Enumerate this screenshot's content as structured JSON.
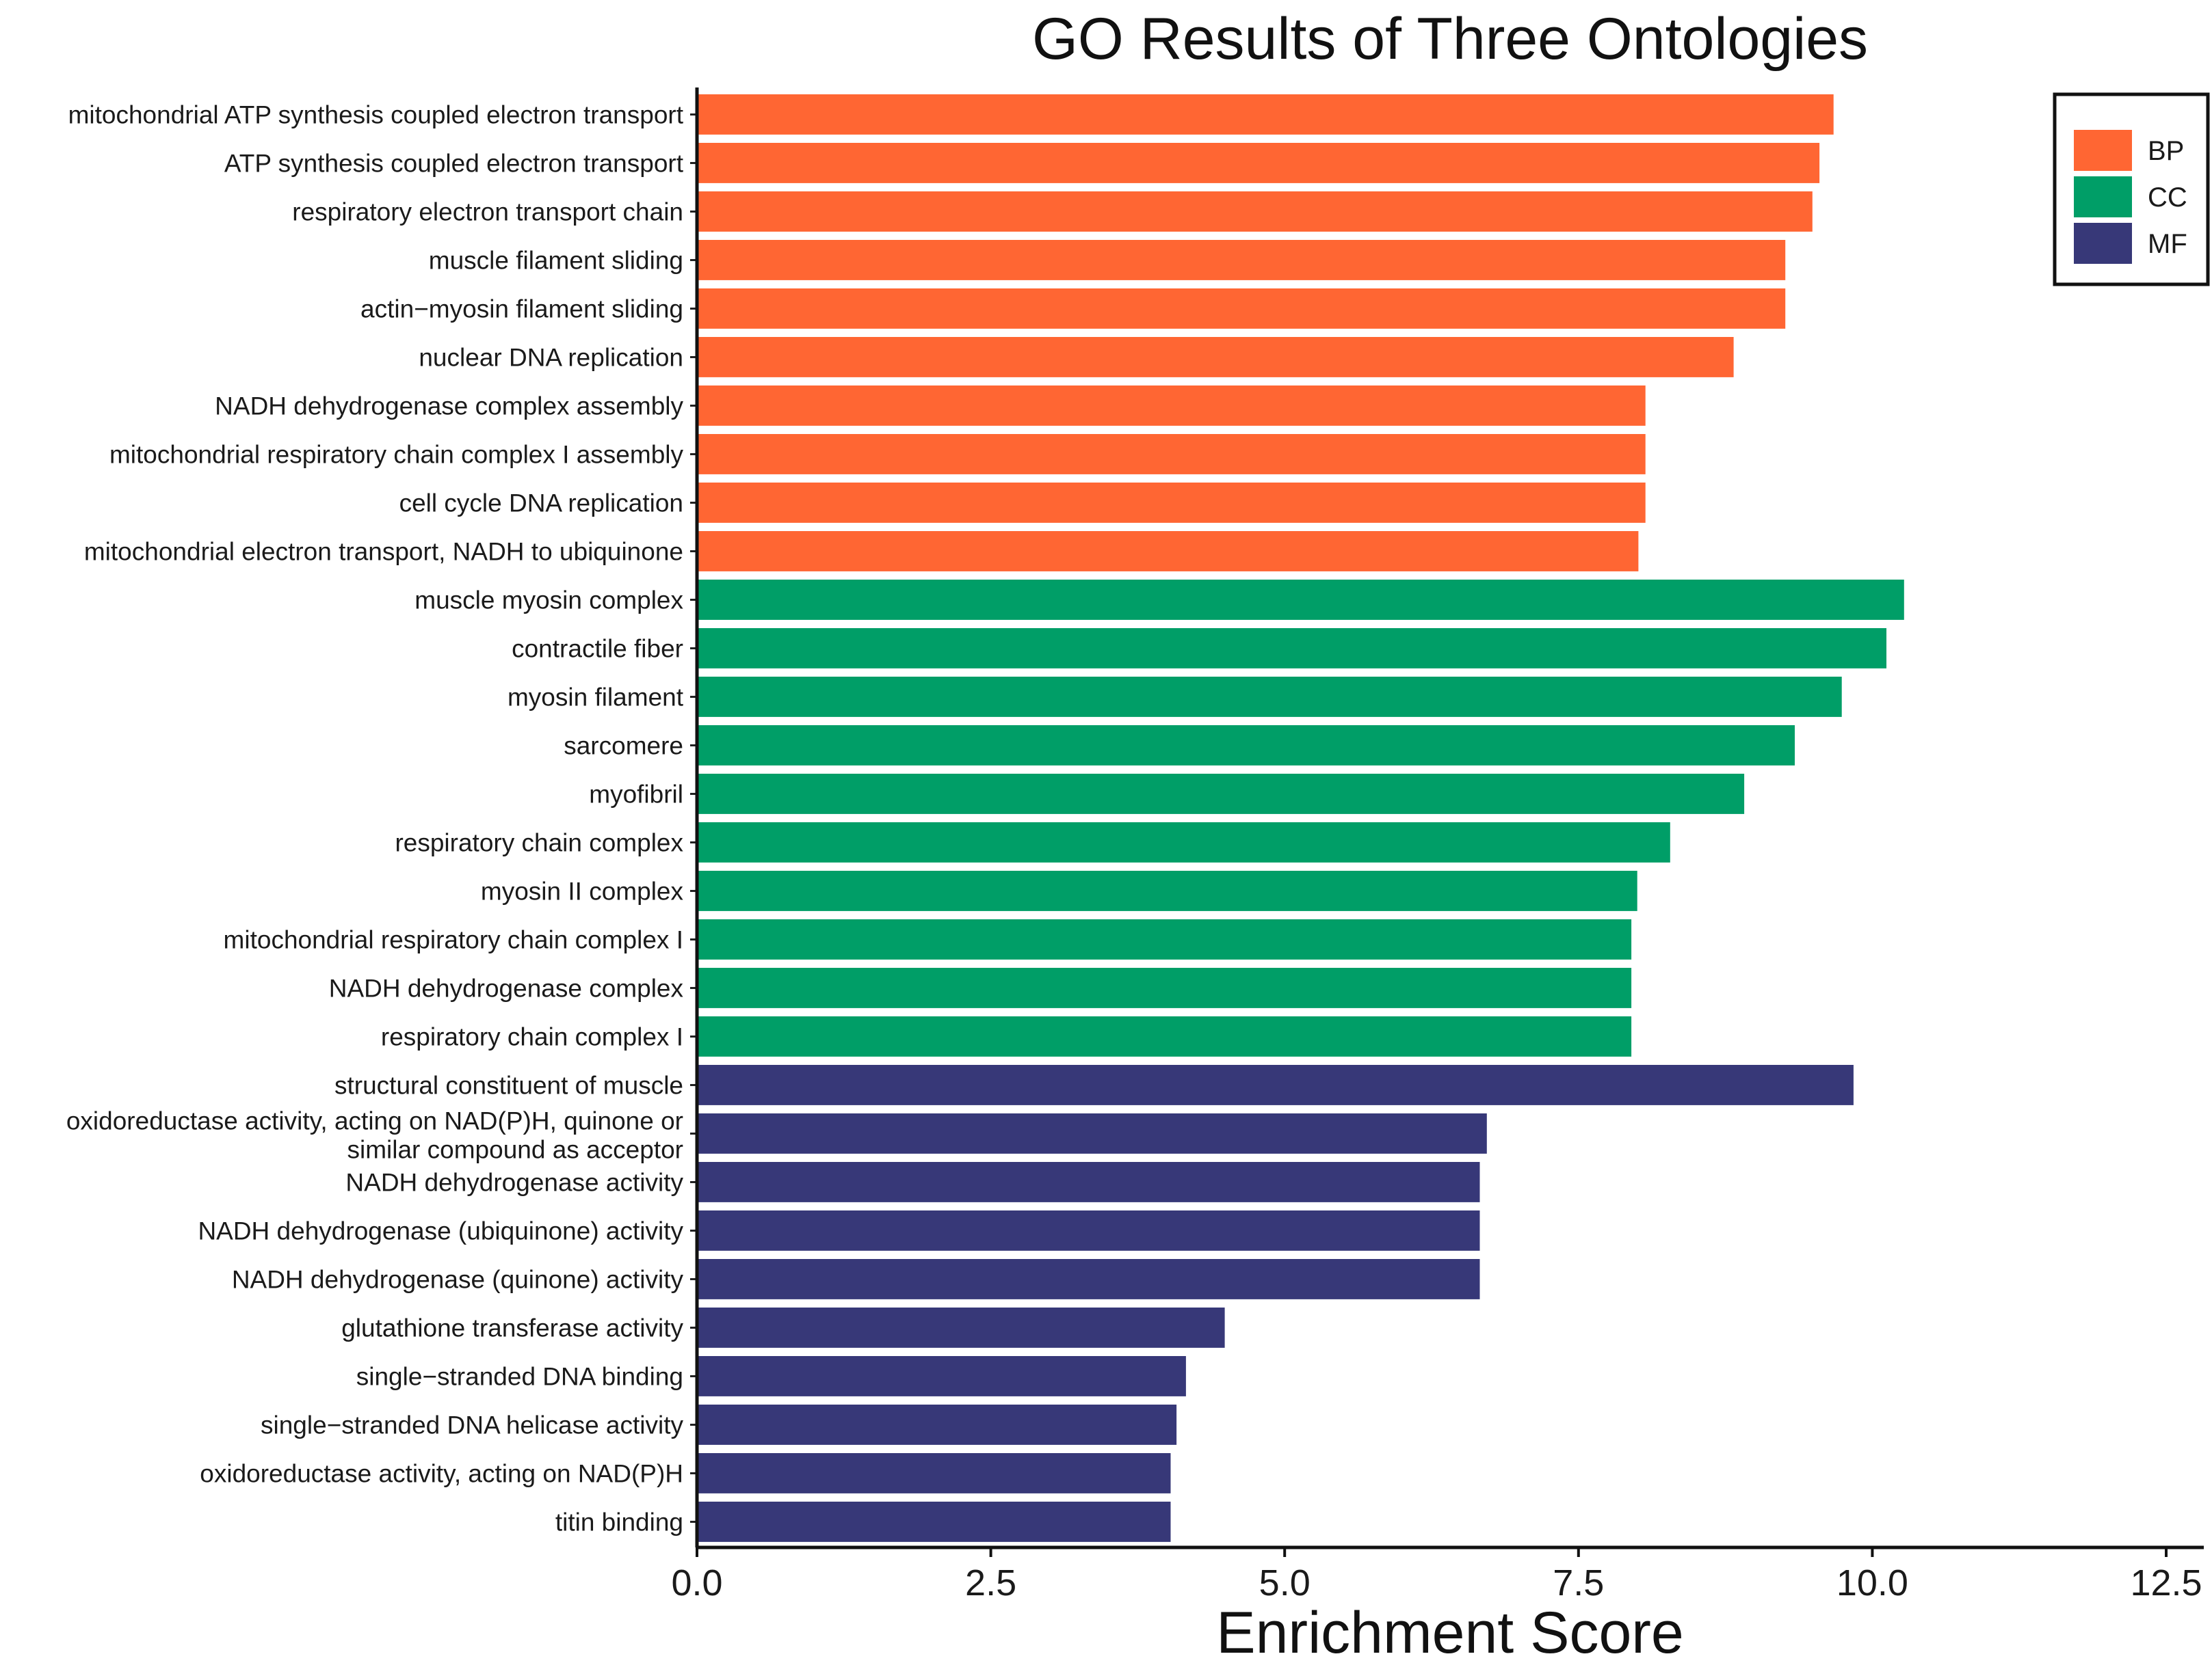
{
  "chart_data": {
    "type": "bar",
    "orientation": "horizontal",
    "title": "GO Results of Three Ontologies",
    "xlabel": "Enrichment Score",
    "ylabel": "",
    "xlim": [
      0,
      12.8
    ],
    "xticks": [
      0.0,
      2.5,
      5.0,
      7.5,
      10.0,
      12.5
    ],
    "xtick_labels": [
      "0.0",
      "2.5",
      "5.0",
      "7.5",
      "10.0",
      "12.5"
    ],
    "grid": false,
    "legend_position": "top-right",
    "groups": [
      {
        "name": "BP",
        "color": "#FF6633"
      },
      {
        "name": "CC",
        "color": "#009E67"
      },
      {
        "name": "MF",
        "color": "#373878"
      }
    ],
    "bars": [
      {
        "label": [
          "mitochondrial ATP synthesis coupled electron transport"
        ],
        "value": 9.67,
        "group": "BP"
      },
      {
        "label": [
          "ATP synthesis coupled electron transport"
        ],
        "value": 9.55,
        "group": "BP"
      },
      {
        "label": [
          "respiratory electron transport chain"
        ],
        "value": 9.49,
        "group": "BP"
      },
      {
        "label": [
          "muscle filament sliding"
        ],
        "value": 9.26,
        "group": "BP"
      },
      {
        "label": [
          "actin−myosin filament sliding"
        ],
        "value": 9.26,
        "group": "BP"
      },
      {
        "label": [
          "nuclear DNA replication"
        ],
        "value": 8.82,
        "group": "BP"
      },
      {
        "label": [
          "NADH dehydrogenase complex assembly"
        ],
        "value": 8.07,
        "group": "BP"
      },
      {
        "label": [
          "mitochondrial respiratory chain complex I assembly"
        ],
        "value": 8.07,
        "group": "BP"
      },
      {
        "label": [
          "cell cycle DNA replication"
        ],
        "value": 8.07,
        "group": "BP"
      },
      {
        "label": [
          "mitochondrial electron transport, NADH to ubiquinone"
        ],
        "value": 8.01,
        "group": "BP"
      },
      {
        "label": [
          "muscle myosin complex"
        ],
        "value": 10.27,
        "group": "CC"
      },
      {
        "label": [
          "contractile fiber"
        ],
        "value": 10.12,
        "group": "CC"
      },
      {
        "label": [
          "myosin filament"
        ],
        "value": 9.74,
        "group": "CC"
      },
      {
        "label": [
          "sarcomere"
        ],
        "value": 9.34,
        "group": "CC"
      },
      {
        "label": [
          "myofibril"
        ],
        "value": 8.91,
        "group": "CC"
      },
      {
        "label": [
          "respiratory chain complex"
        ],
        "value": 8.28,
        "group": "CC"
      },
      {
        "label": [
          "myosin II complex"
        ],
        "value": 8.0,
        "group": "CC"
      },
      {
        "label": [
          "mitochondrial respiratory chain complex I"
        ],
        "value": 7.95,
        "group": "CC"
      },
      {
        "label": [
          "NADH dehydrogenase complex"
        ],
        "value": 7.95,
        "group": "CC"
      },
      {
        "label": [
          "respiratory chain complex I"
        ],
        "value": 7.95,
        "group": "CC"
      },
      {
        "label": [
          "structural constituent of muscle"
        ],
        "value": 9.84,
        "group": "MF"
      },
      {
        "label": [
          "oxidoreductase activity, acting on NAD(P)H, quinone or",
          "similar compound as acceptor"
        ],
        "value": 6.72,
        "group": "MF"
      },
      {
        "label": [
          "NADH dehydrogenase activity"
        ],
        "value": 6.66,
        "group": "MF"
      },
      {
        "label": [
          "NADH dehydrogenase (ubiquinone) activity"
        ],
        "value": 6.66,
        "group": "MF"
      },
      {
        "label": [
          "NADH dehydrogenase (quinone) activity"
        ],
        "value": 6.66,
        "group": "MF"
      },
      {
        "label": [
          "glutathione transferase activity"
        ],
        "value": 4.49,
        "group": "MF"
      },
      {
        "label": [
          "single−stranded DNA binding"
        ],
        "value": 4.16,
        "group": "MF"
      },
      {
        "label": [
          "single−stranded DNA helicase activity"
        ],
        "value": 4.08,
        "group": "MF"
      },
      {
        "label": [
          "oxidoreductase activity, acting on NAD(P)H"
        ],
        "value": 4.03,
        "group": "MF"
      },
      {
        "label": [
          "titin binding"
        ],
        "value": 4.03,
        "group": "MF"
      }
    ]
  }
}
